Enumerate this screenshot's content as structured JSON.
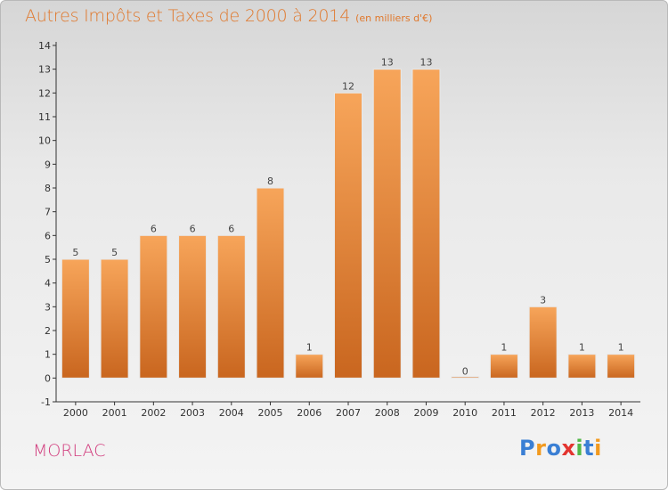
{
  "title": "Autres Impôts et Taxes de 2000 à 2014",
  "subtitle": "(en milliers d'€)",
  "commune": "MORLAC",
  "brand": "Proxiti",
  "colors": {
    "title": "#e0782c",
    "commune": "#d13a7c",
    "bar_light": "#f7a55a",
    "bar_dark": "#c9661f",
    "axis": "#333333"
  },
  "chart_data": {
    "type": "bar",
    "categories": [
      "2000",
      "2001",
      "2002",
      "2003",
      "2004",
      "2005",
      "2006",
      "2007",
      "2008",
      "2009",
      "2010",
      "2011",
      "2012",
      "2013",
      "2014"
    ],
    "values": [
      5,
      5,
      6,
      6,
      6,
      8,
      1,
      12,
      13,
      13,
      0,
      1,
      3,
      1,
      1
    ],
    "title": "Autres Impôts et Taxes de 2000 à 2014",
    "subtitle": "(en milliers d'€)",
    "ylim": [
      -1,
      14
    ],
    "yticks": [
      -1,
      0,
      1,
      2,
      3,
      4,
      5,
      6,
      7,
      8,
      9,
      10,
      11,
      12,
      13,
      14
    ],
    "grid": false,
    "legend": "none"
  }
}
